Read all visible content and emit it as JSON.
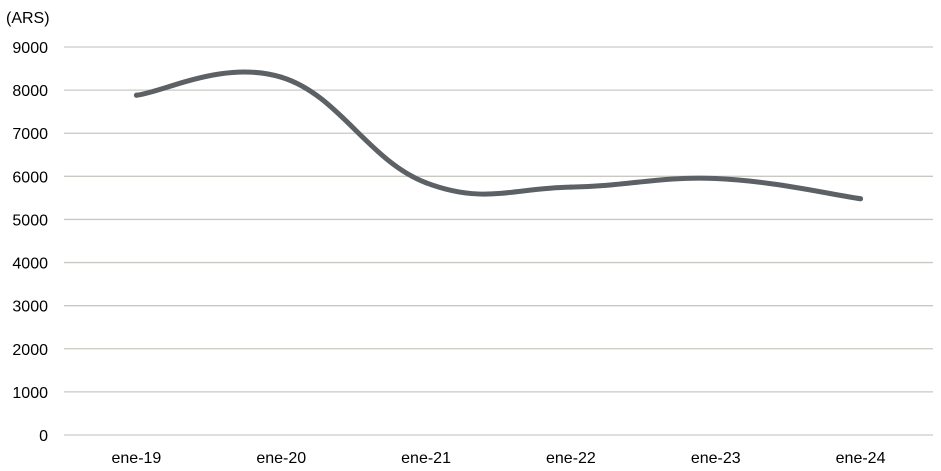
{
  "chart_data": {
    "type": "line",
    "title": "",
    "ylabel": "(ARS)",
    "xlabel": "",
    "categories": [
      "ene-19",
      "ene-20",
      "ene-21",
      "ene-22",
      "ene-23",
      "ene-24"
    ],
    "series": [
      {
        "values": [
          7880,
          8300,
          5850,
          5750,
          5950,
          5480
        ],
        "color": "#5c6166"
      }
    ],
    "ylim": [
      0,
      9000
    ],
    "yticks": [
      0,
      1000,
      2000,
      3000,
      4000,
      5000,
      6000,
      7000,
      8000,
      9000
    ],
    "grid": true,
    "smooth": true,
    "colors": {
      "line": "#5c6166",
      "grid": "#c9c9c3"
    }
  }
}
